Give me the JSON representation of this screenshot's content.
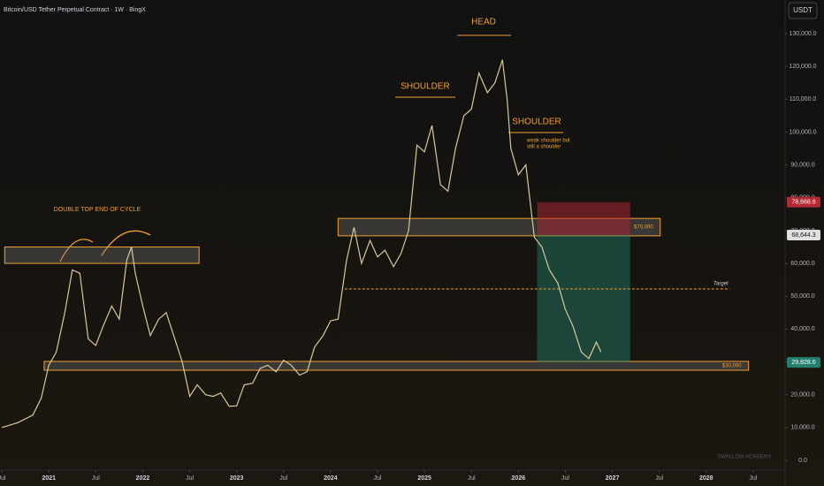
{
  "chart_data": {
    "type": "line",
    "title": "Bitcoin/USD Tether Perpetual Contract · 1W · BingX",
    "currency": "USDT",
    "color": "#d9c89a",
    "xlim": [
      2020.48,
      2028.84
    ],
    "ylim": [
      0,
      130000
    ],
    "xticks": [
      {
        "value": 2020.5,
        "label": "Jul"
      },
      {
        "value": 2021,
        "label": "2021"
      },
      {
        "value": 2021.5,
        "label": "Jul"
      },
      {
        "value": 2022,
        "label": "2022"
      },
      {
        "value": 2022.5,
        "label": "Jul"
      },
      {
        "value": 2023,
        "label": "2023"
      },
      {
        "value": 2023.5,
        "label": "Jul"
      },
      {
        "value": 2024,
        "label": "2024"
      },
      {
        "value": 2024.5,
        "label": "Jul"
      },
      {
        "value": 2025,
        "label": "2025"
      },
      {
        "value": 2025.5,
        "label": "Jul"
      },
      {
        "value": 2026,
        "label": "2026"
      },
      {
        "value": 2026.5,
        "label": "Jul"
      },
      {
        "value": 2027,
        "label": "2027"
      },
      {
        "value": 2027.5,
        "label": "Jul"
      },
      {
        "value": 2028,
        "label": "2028"
      },
      {
        "value": 2028.5,
        "label": "Jul"
      }
    ],
    "yticks": [
      {
        "value": 0,
        "label": "0.0"
      },
      {
        "value": 10000,
        "label": "10,000.0"
      },
      {
        "value": 20000,
        "label": "20,000.0"
      },
      {
        "value": 30000,
        "label": "30,000.0"
      },
      {
        "value": 40000,
        "label": "40,000.0"
      },
      {
        "value": 50000,
        "label": "50,000.0"
      },
      {
        "value": 60000,
        "label": "60,000.0"
      },
      {
        "value": 70000,
        "label": "70,000.0"
      },
      {
        "value": 80000,
        "label": "80,000.0"
      },
      {
        "value": 90000,
        "label": "90,000.0"
      },
      {
        "value": 100000,
        "label": "100,000.0"
      },
      {
        "value": 110000,
        "label": "110,000.0"
      },
      {
        "value": 120000,
        "label": "120,000.0"
      },
      {
        "value": 130000,
        "label": "130,000.0"
      }
    ],
    "x": [
      2020.5,
      2020.67,
      2020.83,
      2020.92,
      2021.0,
      2021.08,
      2021.17,
      2021.25,
      2021.33,
      2021.42,
      2021.5,
      2021.58,
      2021.67,
      2021.75,
      2021.83,
      2021.88,
      2021.92,
      2022.0,
      2022.08,
      2022.17,
      2022.25,
      2022.33,
      2022.42,
      2022.5,
      2022.58,
      2022.67,
      2022.75,
      2022.83,
      2022.92,
      2023.0,
      2023.08,
      2023.17,
      2023.25,
      2023.33,
      2023.42,
      2023.5,
      2023.58,
      2023.67,
      2023.75,
      2023.83,
      2023.92,
      2024.0,
      2024.08,
      2024.17,
      2024.25,
      2024.33,
      2024.42,
      2024.5,
      2024.58,
      2024.67,
      2024.75,
      2024.83,
      2024.92,
      2025.0,
      2025.08,
      2025.17,
      2025.25,
      2025.33,
      2025.42,
      2025.5,
      2025.58,
      2025.67,
      2025.75,
      2025.83,
      2025.88,
      2025.92,
      2026.0,
      2026.08,
      2026.12,
      2026.17,
      2026.25,
      2026.33,
      2026.42,
      2026.5,
      2026.58,
      2026.67,
      2026.75,
      2026.83,
      2026.88
    ],
    "values": [
      10000,
      11500,
      13800,
      19000,
      29000,
      33000,
      45000,
      58000,
      57000,
      37000,
      35000,
      41000,
      47000,
      43000,
      61000,
      65000,
      57000,
      47000,
      38000,
      43000,
      45000,
      38000,
      30000,
      19500,
      23000,
      20000,
      19500,
      20500,
      16500,
      16600,
      23000,
      23500,
      28000,
      29000,
      27000,
      30500,
      29000,
      26000,
      27000,
      34500,
      38000,
      42500,
      43000,
      61000,
      71000,
      60000,
      67000,
      62000,
      64000,
      59000,
      63000,
      70000,
      96000,
      94000,
      102000,
      84000,
      82000,
      95000,
      105000,
      107000,
      118000,
      112000,
      115000,
      122000,
      110000,
      95000,
      87000,
      90000,
      80000,
      68000,
      65000,
      58000,
      54000,
      46000,
      41000,
      33000,
      31000,
      36000,
      33000
    ],
    "zones": [
      {
        "low": 60000,
        "high": 65000,
        "x": [
          2020.53,
          2022.6
        ]
      },
      {
        "low": 68400,
        "high": 73700,
        "x": [
          2024.08,
          2027.51
        ],
        "label": "$70,000"
      },
      {
        "low": 27450,
        "high": 30150,
        "x": [
          2020.95,
          2028.45
        ],
        "label": "$30,000"
      }
    ],
    "position": {
      "stop": 78668.6,
      "entry": 68644.3,
      "take_profit": 29828.6,
      "x": [
        2026.2,
        2027.19
      ]
    },
    "target": {
      "label": "Target",
      "value": 52200,
      "x": [
        2024.15,
        2028.25
      ]
    },
    "price_labels": [
      {
        "value": 78668.6,
        "label": "78,668.6",
        "color": "#b22833"
      },
      {
        "value": 68644.3,
        "label": "68,644.3",
        "color": "#e0e0e0"
      },
      {
        "value": 29828.6,
        "label": "29,828.6",
        "color": "#23806e"
      }
    ],
    "annotations": [
      "DOUBLE TOP END OF CYCLE",
      "SHOULDER",
      "HEAD",
      "SHOULDER",
      "weak shoulder but",
      "still a shoulder"
    ],
    "watermark": "SWALLOW ACADEMY"
  }
}
